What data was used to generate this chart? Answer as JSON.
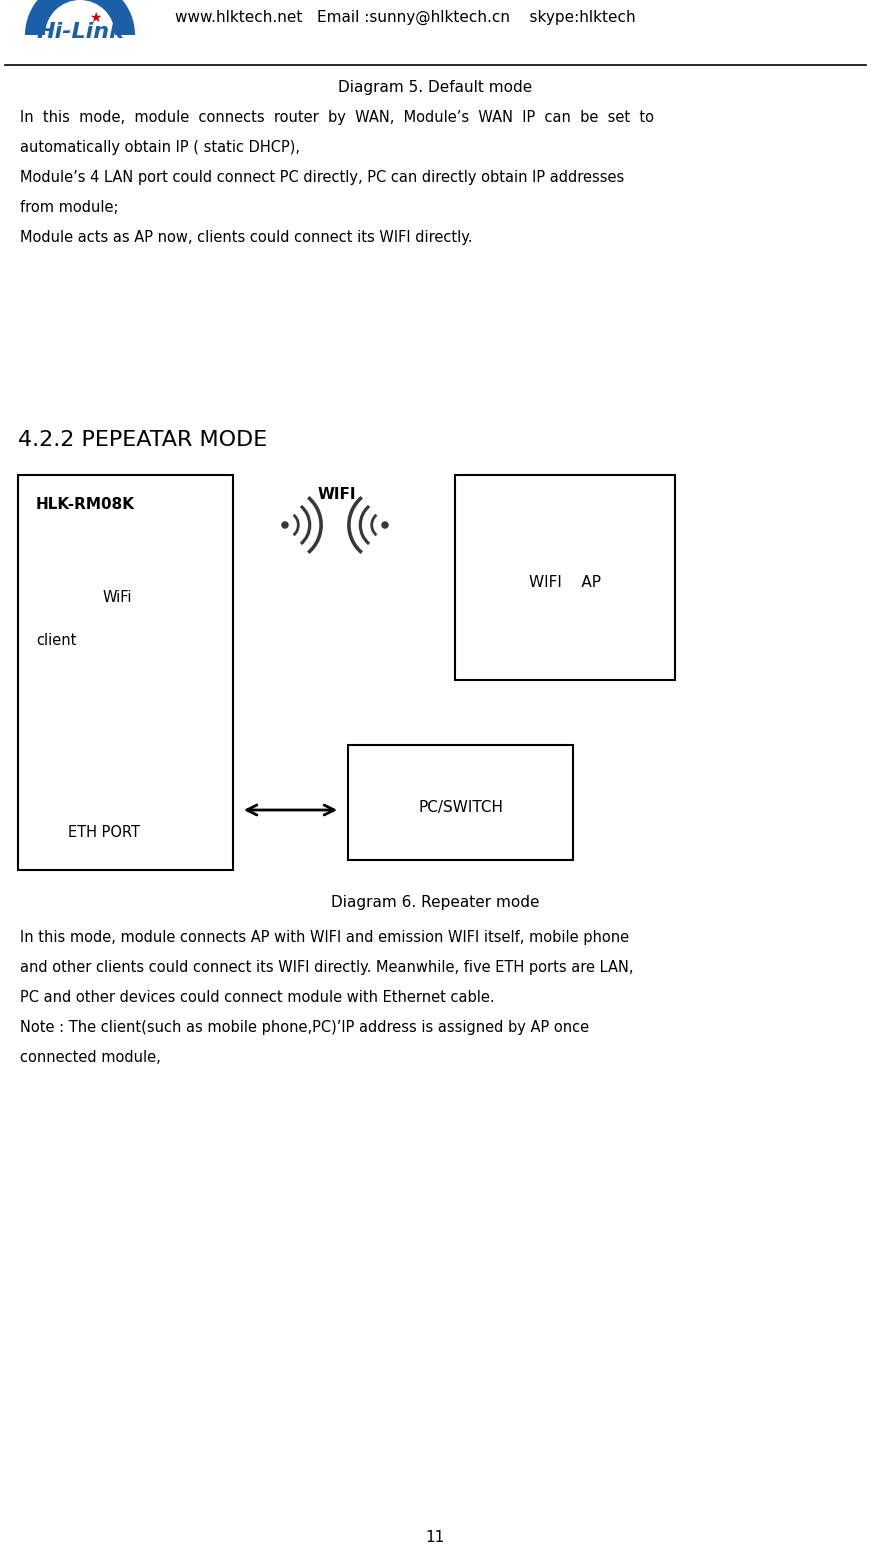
{
  "bg_color": "#ffffff",
  "header_text": "www.hlktech.net   Email :sunny@hlktech.cn    skype:hlktech",
  "header_fontsize": 11,
  "page_number": "11",
  "diagram5_title": "Diagram 5. Default mode",
  "diagram5_line1": "In  this  mode,  module  connects  router  by  WAN,  Module’s  WAN  IP  can  be  set  to",
  "diagram5_line2": "automatically obtain IP ( static DHCP),",
  "diagram5_line3": "Module’s 4 LAN port could connect PC directly, PC can directly obtain IP addresses",
  "diagram5_line4": "from module;",
  "diagram5_line5": "Module acts as AP now, clients could connect its WIFI directly.",
  "section_title": "4.2.2 PEPEATAR MODE",
  "section_title_fontsize": 16,
  "diagram6_title": "Diagram 6. Repeater mode",
  "diagram6_line1": "In this mode, module connects AP with WIFI and emission WIFI itself, mobile phone",
  "diagram6_line2": "and other clients could connect its WIFI directly. Meanwhile, five ETH ports are LAN,",
  "diagram6_line3": "PC and other devices could connect module with Ethernet cable.",
  "diagram6_line4": "Note : The client(such as mobile phone,PC)’IP address is assigned by AP once",
  "diagram6_line5": "connected module,",
  "box_hlk_label": "HLK-RM08K",
  "box_hlk_wifi": "WiFi",
  "box_hlk_client": "client",
  "box_hlk_eth": "ETH PORT",
  "box_ap_wifi": "WIFI    AP",
  "box_pc": "PC/SWITCH",
  "wifi_label": "WIFI",
  "text_color": "#000000",
  "logo_blue": "#1a5fa8",
  "logo_red": "#cc0000"
}
